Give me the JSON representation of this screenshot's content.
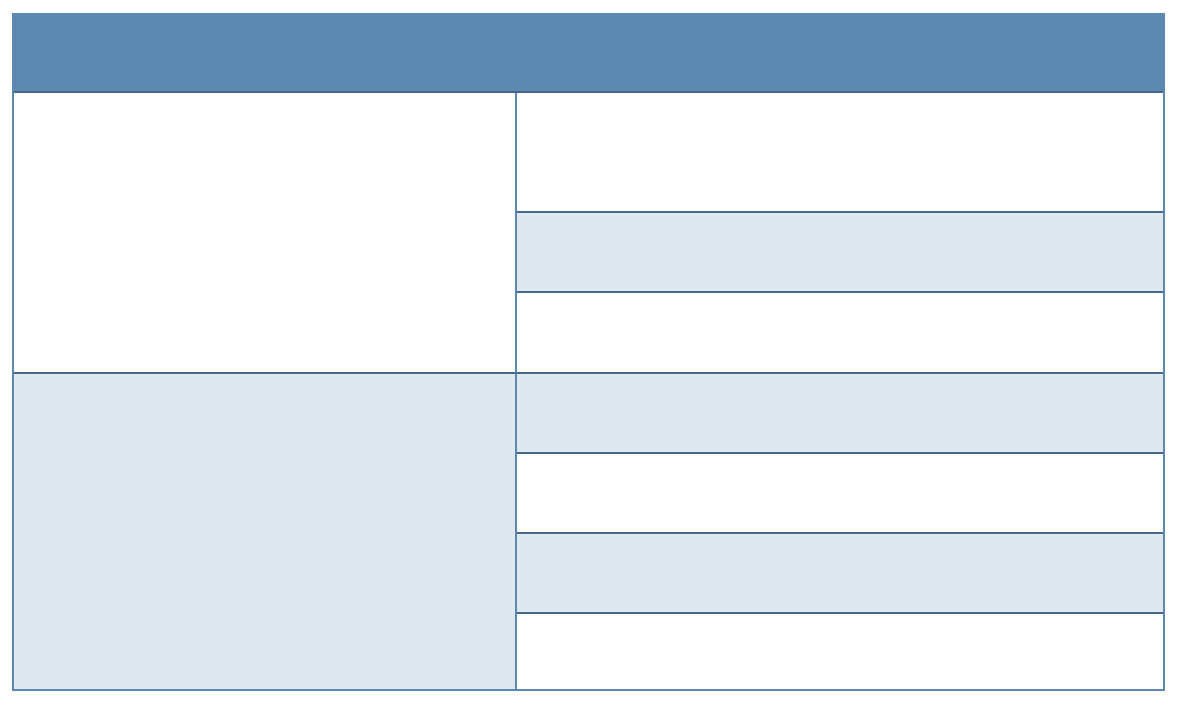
{
  "table": {
    "header": {
      "text": ""
    },
    "groups": [
      {
        "label": "",
        "rows": [
          "",
          "",
          ""
        ]
      },
      {
        "label": "",
        "rows": [
          "",
          "",
          "",
          ""
        ]
      }
    ]
  },
  "colors": {
    "header_fill": "#5d89b0",
    "band_fill": "#dfe7ef",
    "border": "#44698c"
  }
}
